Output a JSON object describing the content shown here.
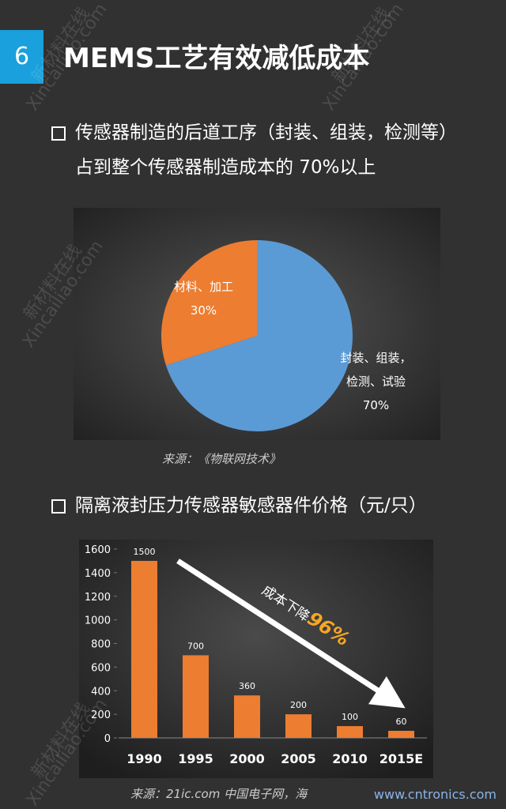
{
  "slide": {
    "number": "6",
    "title": "MEMS工艺有效减低成本",
    "bullets": [
      "传感器制造的后道工序（封装、组装，检测等）占到整个传感器制造成本的 70%以上",
      "隔离液封压力传感器敏感器件价格（元/只）"
    ],
    "sources": [
      "来源：《物联网技术》",
      "来源：21ic.com 中国电子网，海"
    ],
    "watermark": "新材料在线",
    "watermark_url": "Xincailiao.com",
    "site": "www.cntronics.com"
  },
  "chart_data": [
    {
      "type": "pie",
      "categories": [
        "材料、加工",
        "封装、组装，检测、试验"
      ],
      "values": [
        30,
        70
      ],
      "value_labels": [
        "30%",
        "70%"
      ],
      "colors": [
        "#ed7d31",
        "#5b9bd5"
      ]
    },
    {
      "type": "bar",
      "categories": [
        "1990",
        "1995",
        "2000",
        "2005",
        "2010",
        "2015E"
      ],
      "values": [
        1500,
        700,
        360,
        200,
        100,
        60
      ],
      "color": "#ed7d31",
      "ylim": [
        0,
        1600
      ],
      "yticks": [
        0,
        200,
        400,
        600,
        800,
        1000,
        1200,
        1400,
        1600
      ],
      "grid": false,
      "annotation": {
        "text": "成本下降",
        "highlight": "96%"
      }
    }
  ]
}
